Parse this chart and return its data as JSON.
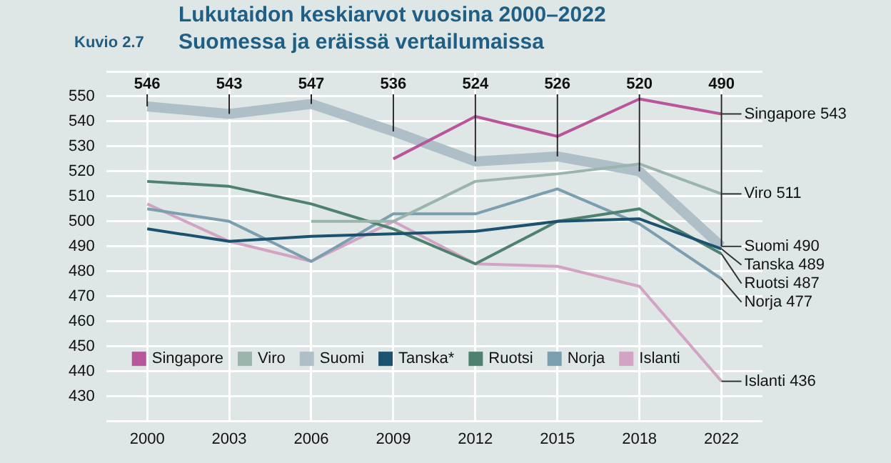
{
  "chart_data": {
    "type": "line",
    "title": "Lukutaidon keskiarvot vuosina 2000–2022",
    "subtitle": "Suomessa ja eräissä vertailumaissa",
    "categories": [
      "2000",
      "2003",
      "2006",
      "2009",
      "2012",
      "2015",
      "2018",
      "2022"
    ],
    "series": [
      {
        "name": "Singapore",
        "color": "#b9559a",
        "values": [
          null,
          null,
          null,
          525,
          542,
          534,
          549,
          543
        ]
      },
      {
        "name": "Viro",
        "color": "#9bb5ad",
        "values": [
          null,
          null,
          500,
          500,
          516,
          519,
          523,
          511
        ]
      },
      {
        "name": "Suomi",
        "color": "#aebfc8",
        "values": [
          546,
          543,
          547,
          536,
          524,
          526,
          520,
          490
        ],
        "value_labels": [
          "546",
          "543",
          "547",
          "536",
          "524",
          "526",
          "520",
          "490"
        ]
      },
      {
        "name": "Tanska*",
        "color": "#1a5270",
        "values": [
          497,
          492,
          494,
          495,
          496,
          500,
          501,
          489
        ]
      },
      {
        "name": "Ruotsi",
        "color": "#4e8170",
        "values": [
          516,
          514,
          507,
          497,
          483,
          500,
          505,
          487
        ]
      },
      {
        "name": "Norja",
        "color": "#7c9fb0",
        "values": [
          505,
          500,
          484,
          503,
          503,
          513,
          499,
          477
        ]
      },
      {
        "name": "Islanti",
        "color": "#d3a3c3",
        "values": [
          507,
          492,
          484,
          500,
          483,
          482,
          474,
          436
        ]
      }
    ],
    "ylim": [
      420,
      560
    ],
    "yticks": [
      {
        "value": 420,
        "label": null
      },
      430,
      440,
      450,
      460,
      470,
      480,
      490,
      500,
      510,
      520,
      530,
      540,
      550,
      {
        "value": 560,
        "label": null
      }
    ],
    "grid": true,
    "legend": "bottom left",
    "marker": "none",
    "line_style": "solid",
    "annotations": [
      "Kuvio 2.7",
      {
        "text": "Singapore 543",
        "x": "2022",
        "y": 543
      },
      {
        "text": "Viro 511",
        "x": "2022",
        "y": 511
      },
      {
        "text": "Suomi 490",
        "x": "2022",
        "y": 490
      },
      {
        "text": "Tanska 489",
        "x": "2022",
        "y": 489
      },
      {
        "text": "Ruotsi 487",
        "x": "2022",
        "y": 487
      },
      {
        "text": "Norja 477",
        "x": "2022",
        "y": 477
      },
      {
        "text": "Islanti 436",
        "x": "2022",
        "y": 436
      }
    ]
  }
}
